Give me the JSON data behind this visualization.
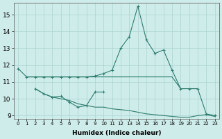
{
  "background_color": "#ceecea",
  "line_color": "#2e7d6e",
  "xlim": [
    -0.5,
    23.5
  ],
  "ylim": [
    8.8,
    15.7
  ],
  "yticks": [
    9,
    10,
    11,
    12,
    13,
    14,
    15
  ],
  "xticks": [
    0,
    1,
    2,
    3,
    4,
    5,
    6,
    7,
    8,
    9,
    10,
    11,
    12,
    13,
    14,
    15,
    16,
    17,
    18,
    19,
    20,
    21,
    22,
    23
  ],
  "xlabel": "Humidex (Indice chaleur)",
  "series": [
    {
      "x": [
        0,
        1,
        2,
        3,
        4,
        5,
        6,
        7,
        8,
        9,
        10,
        11,
        12,
        13,
        14,
        15,
        16,
        17,
        18,
        19,
        20,
        21,
        22,
        23
      ],
      "y": [
        11.8,
        11.3,
        11.3,
        11.3,
        11.3,
        11.3,
        11.3,
        11.3,
        11.3,
        11.35,
        11.5,
        11.7,
        13.0,
        13.7,
        15.5,
        13.5,
        12.7,
        12.9,
        11.7,
        10.6,
        10.6,
        10.6,
        9.1,
        9.0
      ],
      "markers": true
    },
    {
      "x": [
        1,
        2,
        3,
        4,
        5,
        6,
        7,
        8,
        9,
        10,
        11,
        12,
        13,
        14,
        15,
        16,
        17,
        18,
        19
      ],
      "y": [
        11.3,
        11.3,
        11.3,
        11.3,
        11.3,
        11.3,
        11.3,
        11.3,
        11.3,
        11.3,
        11.3,
        11.3,
        11.3,
        11.3,
        11.3,
        11.3,
        11.3,
        11.3,
        10.6
      ],
      "markers": false
    },
    {
      "x": [
        2,
        3,
        4,
        5,
        6,
        7,
        8,
        9,
        10
      ],
      "y": [
        10.6,
        10.3,
        10.1,
        10.15,
        9.8,
        9.5,
        9.6,
        10.4,
        10.4
      ],
      "markers": true
    },
    {
      "x": [
        2,
        3,
        4,
        5,
        6,
        7,
        8,
        9,
        10,
        11,
        12,
        13,
        14,
        15,
        16,
        17,
        18,
        19,
        20,
        21,
        22,
        23
      ],
      "y": [
        10.6,
        10.3,
        10.1,
        10.0,
        9.9,
        9.7,
        9.6,
        9.5,
        9.5,
        9.4,
        9.35,
        9.3,
        9.2,
        9.1,
        9.05,
        9.0,
        8.95,
        8.9,
        8.9,
        9.0,
        9.05,
        8.95
      ],
      "markers": false
    }
  ]
}
